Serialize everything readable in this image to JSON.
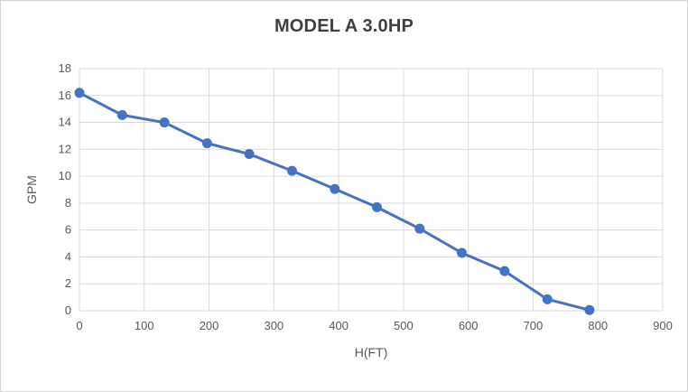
{
  "chart": {
    "title": "MODEL A 3.0HP"
  },
  "chart_data": {
    "type": "line",
    "title": "MODEL A 3.0HP",
    "xlabel": "H(FT)",
    "ylabel": "GPM",
    "x": [
      0,
      66,
      131,
      197,
      262,
      328,
      394,
      459,
      525,
      590,
      656,
      722,
      787
    ],
    "y": [
      16.2,
      14.55,
      14.0,
      12.45,
      11.65,
      10.4,
      9.05,
      7.7,
      6.1,
      4.3,
      2.95,
      0.85,
      0.05
    ],
    "xlim": [
      0,
      900
    ],
    "ylim": [
      0,
      18
    ],
    "x_ticks": [
      0,
      100,
      200,
      300,
      400,
      500,
      600,
      700,
      800,
      900
    ],
    "y_ticks": [
      0,
      2,
      4,
      6,
      8,
      10,
      12,
      14,
      16,
      18
    ],
    "grid": true,
    "legend": "none",
    "style": {
      "line_color": "#4472C4",
      "marker_color": "#4472C4",
      "line_width": 3,
      "marker_radius": 5.5,
      "gridline_color": "#D9D9D9",
      "tick_label_color": "#595959",
      "axis_title_color": "#595959",
      "title_color": "#404040",
      "background": "#FFFFFF"
    }
  }
}
